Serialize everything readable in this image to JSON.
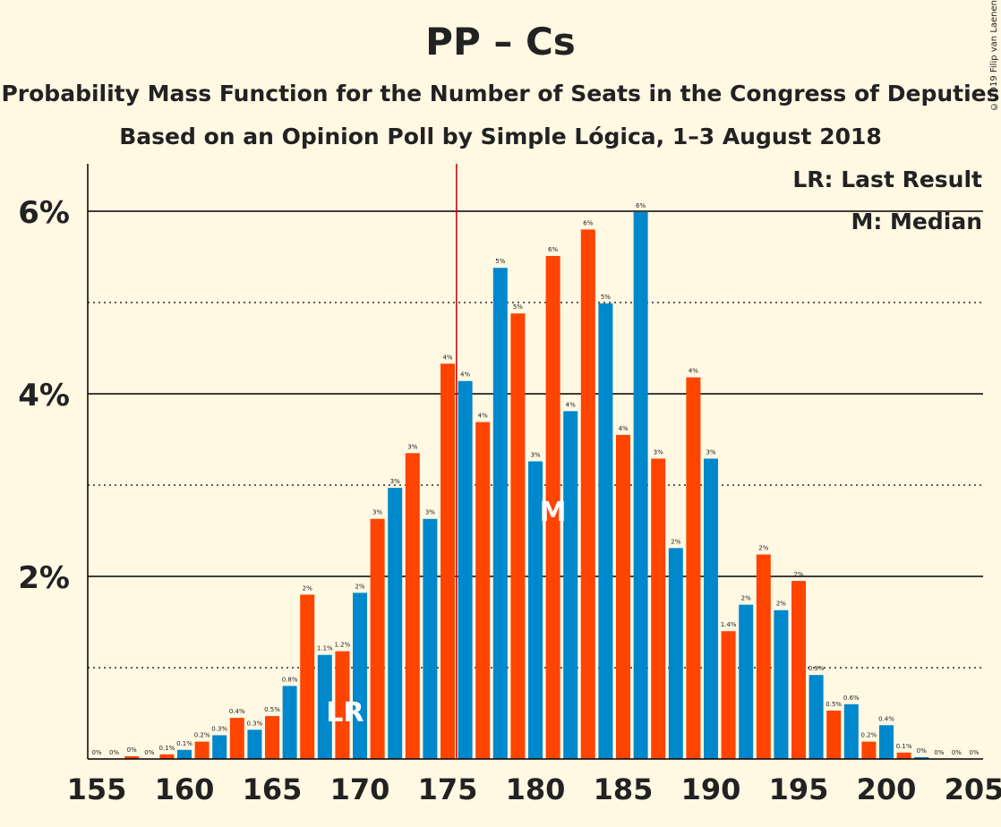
{
  "title": "PP – Cs",
  "subtitle1": "Probability Mass Function for the Number of Seats in the Congress of Deputies",
  "subtitle2": "Based on an Opinion Poll by Simple Lógica, 1–3 August 2018",
  "copyright": "© 2019 Filip van Laenen",
  "legend": [
    "LR: Last Result",
    "M: Median"
  ],
  "colors": {
    "pp": "#0088cc",
    "cs": "#ff4400",
    "background": "#fff8e3",
    "majority_line": "#cc0000"
  },
  "chart_data": {
    "type": "bar",
    "x": [
      155,
      156,
      157,
      158,
      159,
      160,
      161,
      162,
      163,
      164,
      165,
      166,
      167,
      168,
      169,
      170,
      171,
      172,
      173,
      174,
      175,
      176,
      177,
      178,
      179,
      180,
      181,
      182,
      183,
      184,
      185,
      186,
      187,
      188,
      189,
      190,
      191,
      192,
      193,
      194,
      195,
      196,
      197,
      198,
      199,
      200,
      201,
      202,
      203,
      204,
      205
    ],
    "values": [
      0,
      0,
      0.03,
      0,
      0.05,
      0.1,
      0.19,
      0.26,
      0.45,
      0.32,
      0.47,
      0.8,
      1.8,
      1.14,
      1.18,
      1.82,
      2.63,
      2.97,
      3.35,
      2.63,
      4.33,
      4.14,
      3.69,
      5.38,
      4.88,
      3.26,
      5.51,
      3.81,
      5.8,
      4.99,
      3.55,
      5.99,
      3.29,
      2.31,
      4.18,
      3.29,
      1.4,
      1.69,
      2.24,
      1.63,
      1.95,
      0.92,
      0.53,
      0.6,
      0.19,
      0.37,
      0.07,
      0.02,
      0,
      0,
      0
    ],
    "labels": [
      "0%",
      "0%",
      "0%",
      "0%",
      "0.1%",
      "0.1%",
      "0.2%",
      "0.3%",
      "0.4%",
      "0.3%",
      "0.5%",
      "0.8%",
      "2%",
      "1.1%",
      "1.2%",
      "2%",
      "3%",
      "3%",
      "3%",
      "3%",
      "4%",
      "4%",
      "4%",
      "5%",
      "5%",
      "3%",
      "6%",
      "4%",
      "6%",
      "5%",
      "4%",
      "6%",
      "3%",
      "2%",
      "4%",
      "3%",
      "1.4%",
      "2%",
      "2%",
      "2%",
      "2%",
      "0.9%",
      "0.5%",
      "0.6%",
      "0.2%",
      "0.4%",
      "0.1%",
      "0%",
      "0%",
      "0%",
      "0%"
    ],
    "x_ticks": [
      "155",
      "160",
      "165",
      "170",
      "175",
      "180",
      "185",
      "190",
      "195",
      "200",
      "205"
    ],
    "y_ticks": [
      "2%",
      "4%",
      "6%"
    ],
    "ylim": [
      0,
      6.5
    ],
    "majority_seat": 175.5,
    "last_result_seat": 169,
    "last_result_label": "LR",
    "median_seat": 181,
    "median_label": "M",
    "grid": "solid at 2%, 4%, 6%; dotted at 1%, 3%, 5%"
  }
}
